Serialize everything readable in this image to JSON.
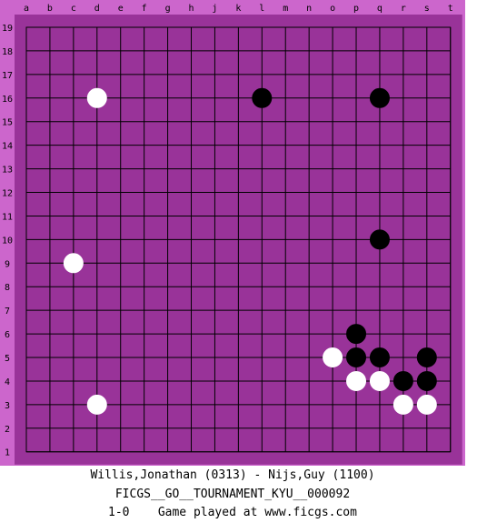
{
  "board": {
    "size": 19,
    "colors": {
      "border": "#cc66cc",
      "board": "#993399",
      "lines": "#000000",
      "black": "#000000",
      "white": "#ffffff"
    },
    "column_labels": [
      "a",
      "b",
      "c",
      "d",
      "e",
      "f",
      "g",
      "h",
      "j",
      "k",
      "l",
      "m",
      "n",
      "o",
      "p",
      "q",
      "r",
      "s",
      "t"
    ],
    "row_labels": [
      "19",
      "18",
      "17",
      "16",
      "15",
      "14",
      "13",
      "12",
      "11",
      "10",
      "9",
      "8",
      "7",
      "6",
      "5",
      "4",
      "3",
      "2",
      "1"
    ],
    "black_stones": [
      "l16",
      "q16",
      "q10",
      "p6",
      "p5",
      "q5",
      "s5",
      "r4",
      "s4"
    ],
    "white_stones": [
      "d16",
      "c9",
      "o5",
      "p4",
      "q4",
      "d3",
      "r3",
      "s3"
    ]
  },
  "caption": {
    "players": "Willis,Jonathan (0313) - Nijs,Guy (1100)",
    "event": "FICGS__GO__TOURNAMENT_KYU__000092",
    "result": "1-0    Game played at www.ficgs.com"
  }
}
